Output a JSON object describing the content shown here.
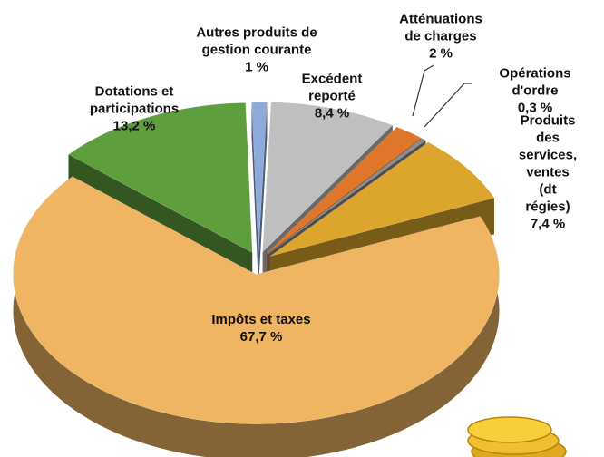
{
  "chart_data": {
    "type": "pie",
    "categories": [
      "Excédent\nreporté",
      "Atténuations\nde charges",
      "Opérations d'ordre",
      "Produits des\nservices, ventes\n(dt régies)",
      "Impôts et taxes",
      "Dotations et\nparticipations",
      "Autres produits de\ngestion courante"
    ],
    "values": [
      8.4,
      2,
      0.3,
      7.4,
      67.7,
      13.2,
      1
    ],
    "value_labels": [
      "8,4 %",
      "2 %",
      "0,3 %",
      "7,4 %",
      "67,7 %",
      "13,2 %",
      "1 %"
    ],
    "colors": [
      "#bfbfbf",
      "#e0762a",
      "#8c8c8c",
      "#dca52b",
      "#f0b562",
      "#5f9e3c",
      "#8eaadb"
    ]
  }
}
